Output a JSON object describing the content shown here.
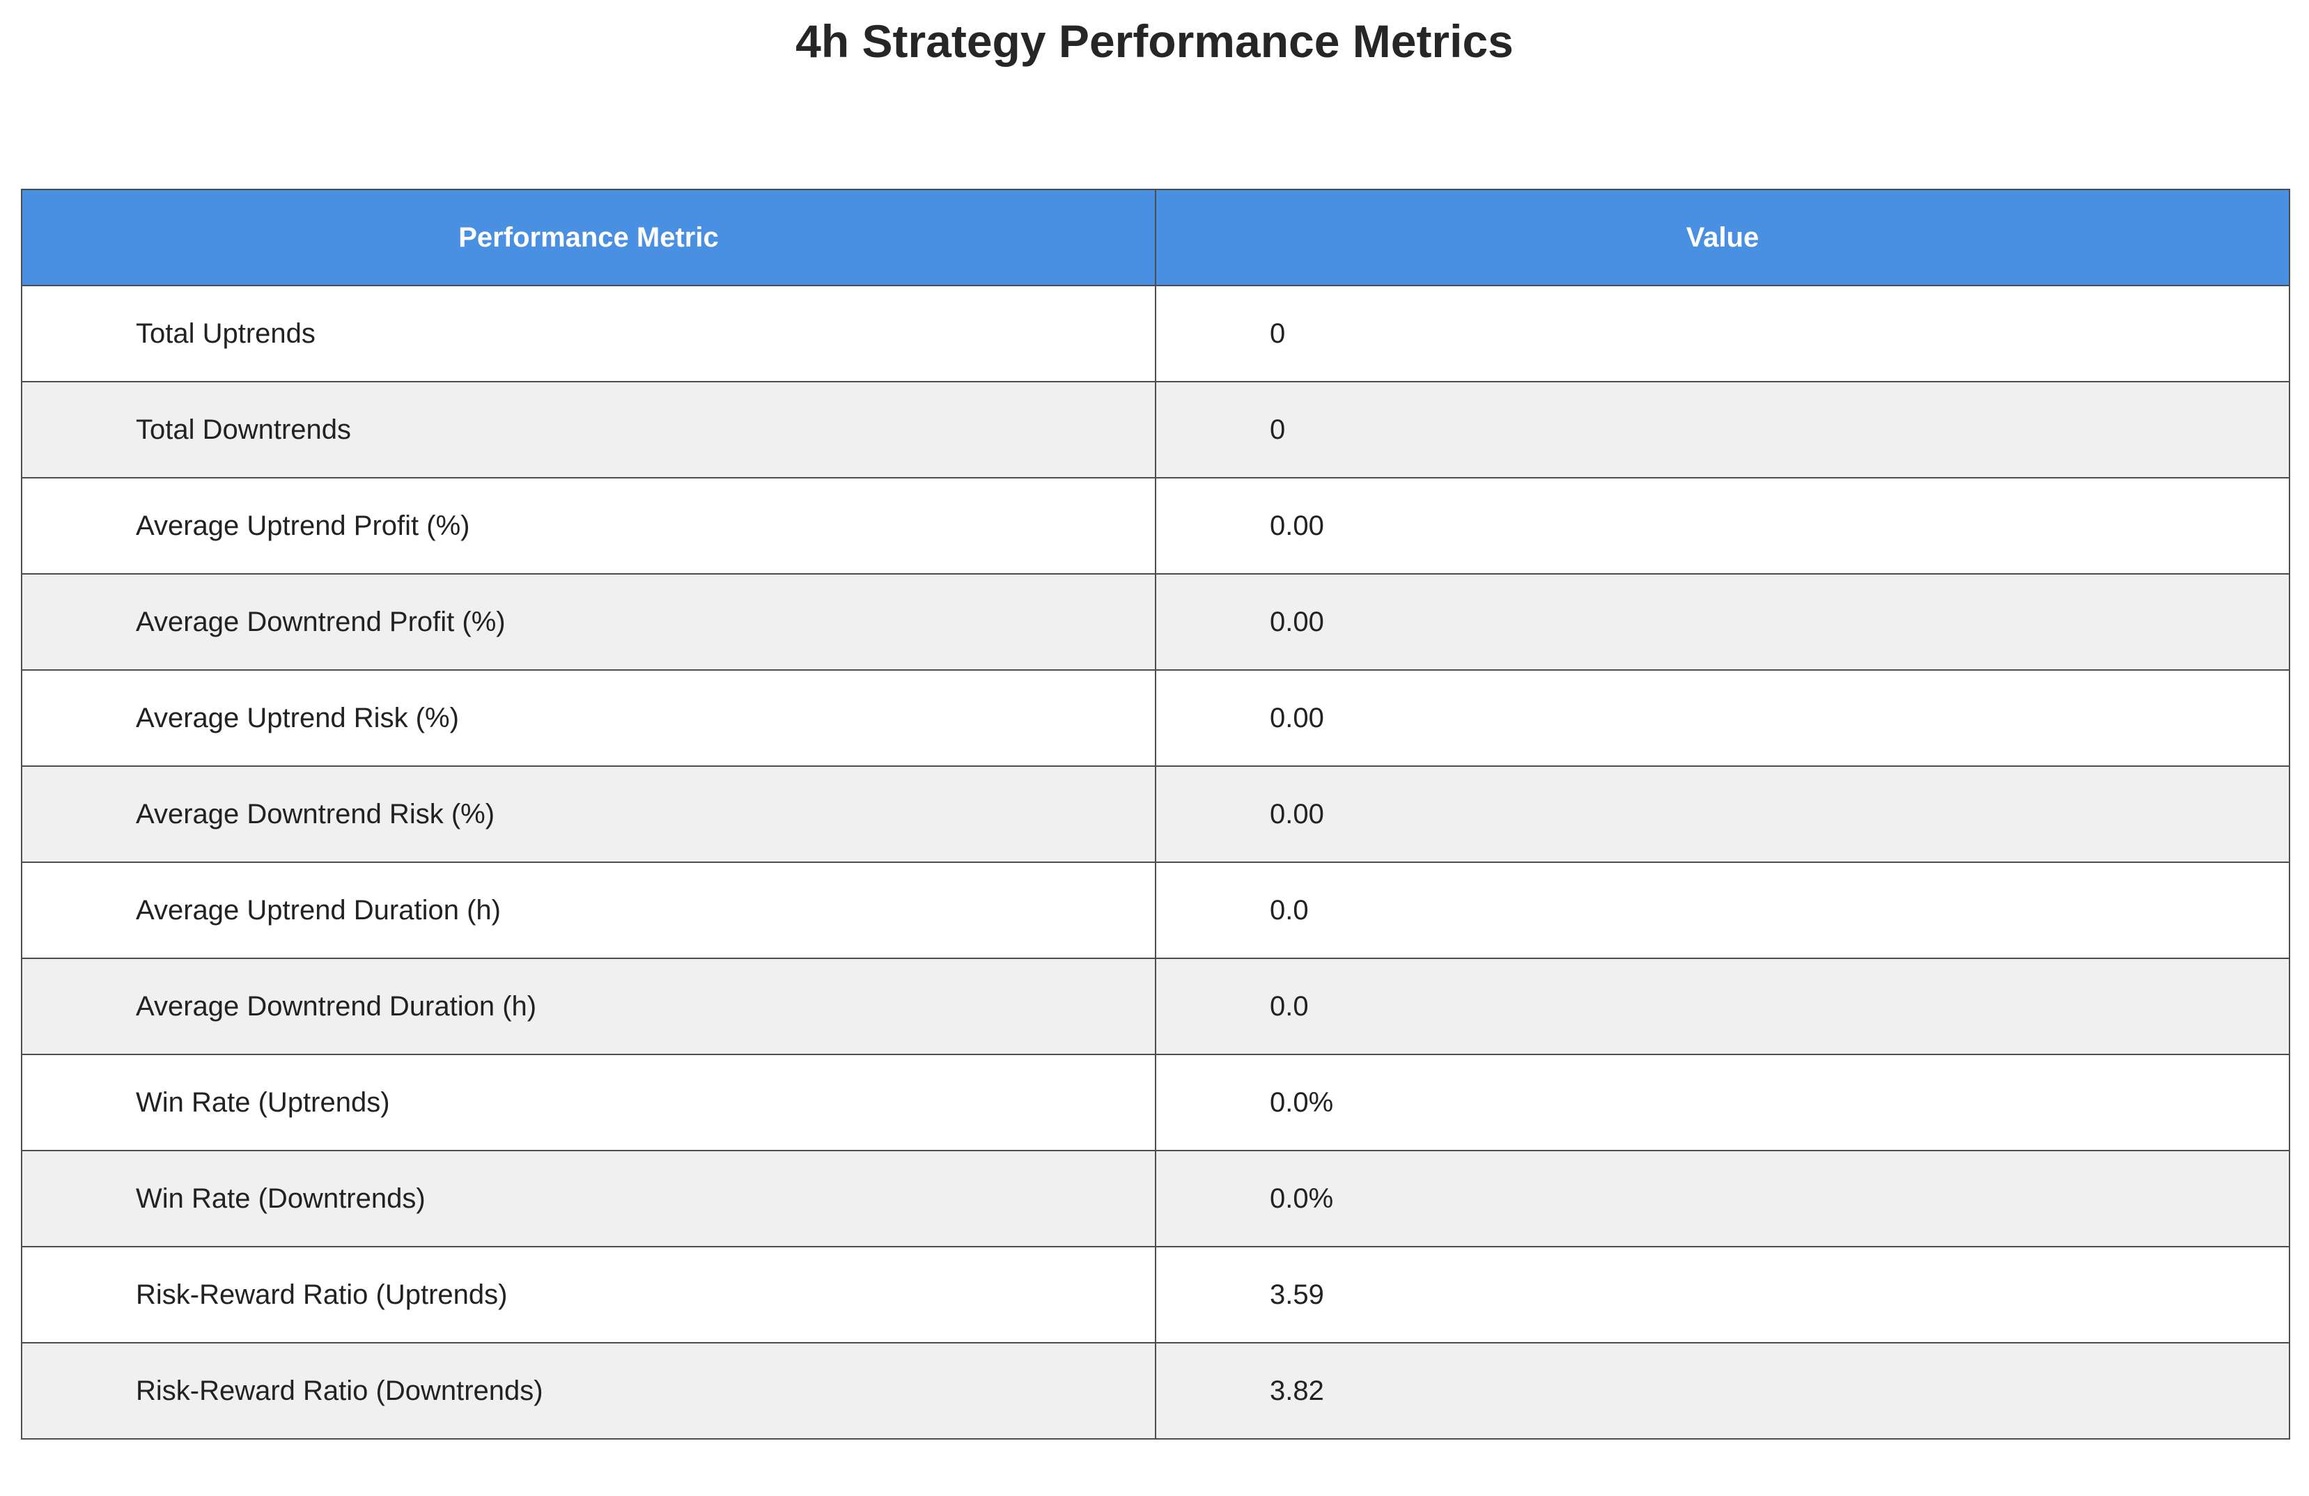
{
  "chart_data": {
    "type": "table",
    "title": "4h Strategy Performance Metrics",
    "columns": [
      "Performance Metric",
      "Value"
    ],
    "rows": [
      [
        "Total Uptrends",
        "0"
      ],
      [
        "Total Downtrends",
        "0"
      ],
      [
        "Average Uptrend Profit (%)",
        "0.00"
      ],
      [
        "Average Downtrend Profit (%)",
        "0.00"
      ],
      [
        "Average Uptrend Risk (%)",
        "0.00"
      ],
      [
        "Average Downtrend Risk (%)",
        "0.00"
      ],
      [
        "Average Uptrend Duration (h)",
        "0.0"
      ],
      [
        "Average Downtrend Duration (h)",
        "0.0"
      ],
      [
        "Win Rate (Uptrends)",
        "0.0%"
      ],
      [
        "Win Rate (Downtrends)",
        "0.0%"
      ],
      [
        "Risk-Reward Ratio (Uptrends)",
        "3.59"
      ],
      [
        "Risk-Reward Ratio (Downtrends)",
        "3.82"
      ]
    ]
  },
  "colors": {
    "header_bg": "#4a90e2",
    "header_text": "#ffffff",
    "row_even_bg": "#ffffff",
    "row_odd_bg": "#f0f0f0",
    "border": "#4d4d4d"
  }
}
